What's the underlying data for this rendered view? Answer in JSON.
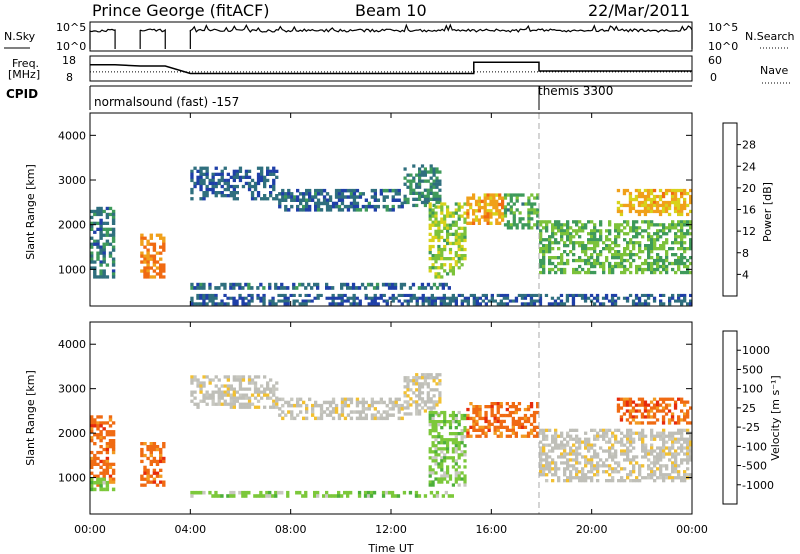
{
  "header": {
    "station": "Prince George (fitACF)",
    "beam": "Beam 10",
    "date": "22/Mar/2011"
  },
  "noise_panel": {
    "left_label": "N.Sky",
    "right_label": "N.Search",
    "left_ticks": [
      "10^5",
      "10^0"
    ],
    "right_ticks": [
      "10^5",
      "10^0"
    ]
  },
  "freq_panel": {
    "left_label_line1": "Freq.",
    "left_label_line2": "[MHz]",
    "right_label": "Nave",
    "left_ticks": [
      "18",
      "8"
    ],
    "right_ticks": [
      "60",
      "0"
    ],
    "freq_steps": [
      {
        "t0": 0.0,
        "t1": 1.0,
        "mhz": 14.5
      },
      {
        "t0": 2.0,
        "t1": 3.0,
        "mhz": 14.0
      },
      {
        "t0": 4.0,
        "t1": 15.3,
        "mhz": 11.0
      },
      {
        "t0": 15.3,
        "t1": 17.9,
        "mhz": 15.5
      },
      {
        "t0": 17.9,
        "t1": 24.0,
        "mhz": 12.0
      }
    ],
    "nave_level": 22
  },
  "cpid": {
    "label": "CPID",
    "program1": "normalsound (fast) -157",
    "program2": "themis 3300",
    "switch_hour": 17.9
  },
  "colors": {
    "power": [
      "#0a10d8",
      "#1f3fa8",
      "#2f6f7e",
      "#3e9a5a",
      "#7cc23a",
      "#d8d21a",
      "#f0a01a",
      "#f06a12",
      "#e62a0c",
      "#e00000"
    ],
    "velocity": [
      "#2030c0",
      "#3060c0",
      "#2a8a6e",
      "#4caf3a",
      "#7cc83a",
      "#c8c8c0",
      "#bfbfb8",
      "#f2c030",
      "#f29a22",
      "#f06a12",
      "#e62a0c",
      "#e00000"
    ]
  },
  "chart_data": [
    {
      "type": "heatmap",
      "panel": "power",
      "x_quantity": "Time UT",
      "xlabel": "Time UT",
      "ylabel": "Slant Range [km]",
      "xlim": [
        0,
        24
      ],
      "ylim": [
        180,
        4500
      ],
      "x_tick_labels": [
        "00:00",
        "04:00",
        "08:00",
        "12:00",
        "16:00",
        "20:00",
        "00:00"
      ],
      "x_tick_hours": [
        0,
        4,
        8,
        12,
        16,
        20,
        24
      ],
      "y_ticks": [
        1000,
        2000,
        3000,
        4000
      ],
      "colorbar": {
        "label": "Power [dB]",
        "ticks": [
          4,
          8,
          12,
          16,
          20,
          24,
          28
        ],
        "range": [
          0,
          30
        ]
      },
      "regions": [
        {
          "x": [
            0.0,
            1.0
          ],
          "y": [
            800,
            2400
          ],
          "value": 7
        },
        {
          "x": [
            2.0,
            3.0
          ],
          "y": [
            800,
            1800
          ],
          "value": 22
        },
        {
          "x": [
            4.0,
            7.5
          ],
          "y": [
            2550,
            3300
          ],
          "value": 5
        },
        {
          "x": [
            7.5,
            12.5
          ],
          "y": [
            2300,
            2800
          ],
          "value": 6
        },
        {
          "x": [
            12.5,
            14.0
          ],
          "y": [
            2400,
            3350
          ],
          "value": 8
        },
        {
          "x": [
            13.5,
            15.0
          ],
          "y": [
            800,
            2500
          ],
          "value": 14
        },
        {
          "x": [
            15.0,
            16.5
          ],
          "y": [
            2000,
            2700
          ],
          "value": 20
        },
        {
          "x": [
            16.5,
            17.9
          ],
          "y": [
            1900,
            2700
          ],
          "value": 11
        },
        {
          "x": [
            17.9,
            24.0
          ],
          "y": [
            900,
            2100
          ],
          "value": 12
        },
        {
          "x": [
            21.0,
            24.0
          ],
          "y": [
            2200,
            2800
          ],
          "value": 19
        },
        {
          "x": [
            4.0,
            14.5
          ],
          "y": [
            550,
            700
          ],
          "value": 6
        },
        {
          "x": [
            4.0,
            24.0
          ],
          "y": [
            200,
            450
          ],
          "value": 5
        }
      ]
    },
    {
      "type": "heatmap",
      "panel": "velocity",
      "x_quantity": "Time UT",
      "xlabel": "Time UT",
      "ylabel": "Slant Range [km]",
      "xlim": [
        0,
        24
      ],
      "ylim": [
        180,
        4500
      ],
      "x_tick_labels": [
        "00:00",
        "04:00",
        "08:00",
        "12:00",
        "16:00",
        "20:00",
        "00:00"
      ],
      "x_tick_hours": [
        0,
        4,
        8,
        12,
        16,
        20,
        24
      ],
      "y_ticks": [
        1000,
        2000,
        3000,
        4000
      ],
      "colorbar": {
        "label": "Velocity [m s⁻¹]",
        "ticks": [
          "1000",
          "500",
          "100",
          "25",
          "-25",
          "-100",
          "-500",
          "-1000"
        ]
      },
      "regions": [
        {
          "x": [
            0.0,
            1.0
          ],
          "y": [
            800,
            2400
          ],
          "value": -200
        },
        {
          "x": [
            2.0,
            3.0
          ],
          "y": [
            800,
            1800
          ],
          "value": -300
        },
        {
          "x": [
            4.0,
            7.5
          ],
          "y": [
            2550,
            3300
          ],
          "value": 0
        },
        {
          "x": [
            7.5,
            12.5
          ],
          "y": [
            2300,
            2800
          ],
          "value": 0
        },
        {
          "x": [
            12.5,
            14.0
          ],
          "y": [
            2400,
            3350
          ],
          "value": 0
        },
        {
          "x": [
            13.5,
            15.0
          ],
          "y": [
            800,
            2500
          ],
          "value": 60
        },
        {
          "x": [
            15.0,
            17.9
          ],
          "y": [
            1900,
            2700
          ],
          "value": -250
        },
        {
          "x": [
            17.9,
            24.0
          ],
          "y": [
            900,
            2100
          ],
          "value": 0
        },
        {
          "x": [
            21.0,
            24.0
          ],
          "y": [
            2200,
            2800
          ],
          "value": -300
        },
        {
          "x": [
            4.0,
            14.5
          ],
          "y": [
            550,
            700
          ],
          "value": 60
        },
        {
          "x": [
            0.0,
            1.0
          ],
          "y": [
            700,
            1000
          ],
          "value": 60
        }
      ]
    }
  ]
}
